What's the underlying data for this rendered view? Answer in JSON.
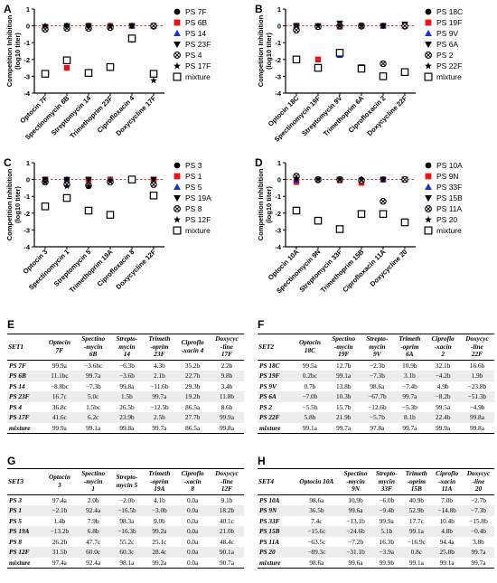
{
  "chart_data": [
    {
      "panel": "A",
      "type": "scatter",
      "ylabel_lines": [
        "Competition Inhibition",
        "(log10 titer)"
      ],
      "ylim": [
        -4,
        1
      ],
      "yticks": [
        1,
        0,
        -1,
        -2,
        -3,
        -4
      ],
      "categories": [
        "Optocin 7F",
        "Spectinomycin 6B",
        "Streptomycin 14",
        "Trimethoprim 23F",
        "Ciprofloxacin 4",
        "Doxycycline 17F"
      ],
      "series": [
        {
          "name": "PS 7F",
          "marker": "circle",
          "values": [
            -0.05,
            0.0,
            -0.1,
            0.0,
            0.0,
            -0.05
          ]
        },
        {
          "name": "PS 6B",
          "marker": "square-red",
          "values": [
            -0.15,
            -2.5,
            0.0,
            0.0,
            0.0,
            0.0
          ]
        },
        {
          "name": "PS 14",
          "marker": "triangle-up-blue",
          "values": [
            -0.05,
            0.0,
            -2.75,
            -0.05,
            0.0,
            0.0
          ]
        },
        {
          "name": "PS 23F",
          "marker": "triangle-down",
          "values": [
            -0.05,
            0.0,
            0.0,
            -2.5,
            0.0,
            -0.05
          ]
        },
        {
          "name": "PS 4",
          "marker": "circle-x",
          "values": [
            -0.2,
            -0.15,
            -0.15,
            -0.1,
            -0.8,
            0.0
          ]
        },
        {
          "name": "PS 17F",
          "marker": "star",
          "values": [
            0.0,
            0.0,
            0.0,
            0.0,
            0.0,
            -3.25
          ]
        },
        {
          "name": "mixture",
          "marker": "square-open",
          "values": [
            -2.85,
            -2.05,
            -2.8,
            -2.45,
            -0.75,
            -2.85
          ]
        }
      ]
    },
    {
      "panel": "B",
      "type": "scatter",
      "ylabel_lines": [
        "Competition Inhibition",
        "(log10 titer)"
      ],
      "ylim": [
        -4,
        1
      ],
      "yticks": [
        1,
        0,
        -1,
        -2,
        -3,
        -4
      ],
      "categories": [
        "Optocin 18C",
        "Spectinomycin 19F",
        "Streptomycin 9V",
        "Trimethoprim 6A",
        "Ciprofloxacin 2",
        "Doxycycline 22F"
      ],
      "series": [
        {
          "name": "PS 18C",
          "marker": "circle",
          "values": [
            0.0,
            -0.05,
            0.0,
            -0.05,
            0.0,
            -0.05
          ]
        },
        {
          "name": "PS 19F",
          "marker": "square-red",
          "values": [
            0.0,
            -2.0,
            -0.05,
            0.0,
            0.0,
            0.0
          ]
        },
        {
          "name": "PS 9V",
          "marker": "triangle-up-blue",
          "values": [
            0.0,
            -0.05,
            -1.75,
            0.0,
            0.0,
            0.0
          ]
        },
        {
          "name": "PS 6A",
          "marker": "triangle-down",
          "values": [
            0.0,
            0.0,
            0.15,
            -2.45,
            0.0,
            0.1
          ]
        },
        {
          "name": "PS 2",
          "marker": "circle-x",
          "values": [
            -0.25,
            -0.05,
            0.0,
            0.0,
            -2.25,
            0.0
          ]
        },
        {
          "name": "PS 22F",
          "marker": "star",
          "values": [
            0.0,
            0.0,
            0.0,
            0.0,
            0.0,
            -2.75
          ]
        },
        {
          "name": "mixture",
          "marker": "square-open",
          "values": [
            -2.0,
            -2.5,
            -1.6,
            -2.55,
            -3.0,
            -2.75
          ]
        }
      ]
    },
    {
      "panel": "C",
      "type": "scatter",
      "ylabel_lines": [
        "Competition Inhibition",
        "(log10 titer)"
      ],
      "ylim": [
        -4,
        1
      ],
      "yticks": [
        1,
        0,
        -1,
        -2,
        -3,
        -4
      ],
      "categories": [
        "Optocin 3",
        "Spectinomycin 1",
        "Streptomycin 5",
        "Trimethoprim 19A",
        "Ciprofloxacin 8",
        "Doxycycline 12F"
      ],
      "series": [
        {
          "name": "PS 3",
          "marker": "circle",
          "values": [
            -0.05,
            0.0,
            -0.4,
            0.0,
            0.0,
            -0.05
          ]
        },
        {
          "name": "PS 1",
          "marker": "square-red",
          "values": [
            0.0,
            -1.05,
            0.0,
            0.0,
            0.0,
            0.0
          ]
        },
        {
          "name": "PS 5",
          "marker": "triangle-up-blue",
          "values": [
            0.0,
            0.0,
            -1.85,
            0.0,
            0.0,
            -0.2
          ]
        },
        {
          "name": "PS 19A",
          "marker": "triangle-down",
          "values": [
            0.0,
            0.0,
            0.0,
            -2.1,
            0.0,
            0.0
          ]
        },
        {
          "name": "PS 8",
          "marker": "circle-x",
          "values": [
            -0.15,
            -0.3,
            -0.35,
            -0.15,
            0.0,
            -0.3
          ]
        },
        {
          "name": "PS 12F",
          "marker": "star",
          "values": [
            -0.15,
            -0.4,
            -0.4,
            -0.1,
            0.0,
            -1.0
          ]
        },
        {
          "name": "mixture",
          "marker": "square-open",
          "values": [
            -1.6,
            -1.1,
            -1.85,
            -2.1,
            0.0,
            -0.95
          ]
        }
      ]
    },
    {
      "panel": "D",
      "type": "scatter",
      "ylabel_lines": [
        "Competition Inhibition",
        "(log10 titer)"
      ],
      "ylim": [
        -4,
        1
      ],
      "yticks": [
        1,
        0,
        -1,
        -2,
        -3,
        -4
      ],
      "categories": [
        "Optocin 10A",
        "Spectinomycin 9N",
        "Streptomycin 33F",
        "Trimethoprim 15B",
        "Ciprofloxacin 11A",
        "Doxycycline 20"
      ],
      "series": [
        {
          "name": "PS 10A",
          "marker": "circle",
          "values": [
            -0.05,
            -0.05,
            0.0,
            0.0,
            0.0,
            0.0
          ]
        },
        {
          "name": "PS 9N",
          "marker": "square-red",
          "values": [
            -0.15,
            -2.45,
            -0.05,
            -0.2,
            0.0,
            0.0
          ]
        },
        {
          "name": "PS 33F",
          "marker": "triangle-up-blue",
          "values": [
            -0.05,
            0.0,
            -2.95,
            0.0,
            0.0,
            0.0
          ]
        },
        {
          "name": "PS 15B",
          "marker": "triangle-down",
          "values": [
            0.05,
            0.0,
            0.0,
            -2.0,
            0.0,
            0.0
          ]
        },
        {
          "name": "PS 11A",
          "marker": "circle-x",
          "values": [
            0.2,
            0.0,
            0.0,
            -0.05,
            -1.3,
            0.0
          ]
        },
        {
          "name": "PS 20",
          "marker": "star",
          "values": [
            0.05,
            0.0,
            0.0,
            0.0,
            0.0,
            -2.5
          ]
        },
        {
          "name": "mixture",
          "marker": "square-open",
          "values": [
            -1.85,
            -2.45,
            -2.95,
            -2.05,
            -2.05,
            -2.55
          ]
        }
      ]
    }
  ],
  "tables": [
    {
      "letter": "E",
      "columns": [
        [
          "SET1"
        ],
        [
          "Optocin",
          "7F"
        ],
        [
          "Spectino",
          "-mycin",
          "6B"
        ],
        [
          "Strepto-",
          "mycin",
          "14"
        ],
        [
          "Trimeth",
          "-oprim",
          "23F"
        ],
        [
          "Ciproflo",
          "-xacin 4"
        ],
        [
          "Doxycyc",
          "-line",
          "17F"
        ]
      ],
      "rows": [
        [
          "PS 7F",
          "99.9a",
          "−3.6bc",
          "−6.3b",
          "4.3b",
          "35.2b",
          "2.2b"
        ],
        [
          "PS 6B",
          "11.1bc",
          "99.7a",
          "−3.6b",
          "2.1b",
          "22.7b",
          "9.8b"
        ],
        [
          "PS 14",
          "−8.8bc",
          "−7.3b",
          "99.8a",
          "−11.6b",
          "29.3b",
          "3.4b"
        ],
        [
          "PS 23F",
          "16.7c",
          "5.0c",
          "1.5b",
          "99.7a",
          "19.2b",
          "11.8b"
        ],
        [
          "PS 4",
          "36.8c",
          "1.5bc",
          "26.5b",
          "−12.5b",
          "86.5a",
          "8.6b"
        ],
        [
          "PS 17F",
          "41.6c",
          "6.2c",
          "23.9b",
          "2.5b",
          "27.7b",
          "99.9a"
        ],
        [
          "mixture",
          "99.9a",
          "99.1a",
          "99.8a",
          "99.7a",
          "86.5a",
          "99.8a"
        ]
      ]
    },
    {
      "letter": "F",
      "columns": [
        [
          "SET2"
        ],
        [
          "Optocin",
          "18C"
        ],
        [
          "Spectino",
          "-mycin",
          "19F"
        ],
        [
          "Strepto-",
          "mycin",
          "9V"
        ],
        [
          "Trimeth",
          "-oprim",
          "6A"
        ],
        [
          "Ciproflo",
          "-xacin",
          "2"
        ],
        [
          "Doxycyc",
          "-line",
          "22F"
        ]
      ],
      "rows": [
        [
          "PS 18C",
          "99.5a",
          "12.7b",
          "−2.3b",
          "10.9b",
          "32.1b",
          "16.6b"
        ],
        [
          "PS 19F",
          "0.2bc",
          "99.1a",
          "−7.3b",
          "3.1b",
          "−4.2b",
          "1.9b"
        ],
        [
          "PS 9V",
          "0.7b",
          "13.8b",
          "98.6a",
          "−7.4b",
          "4.9b",
          "−23.8b"
        ],
        [
          "PS 6A",
          "−7.0b",
          "10.3b",
          "−67.7b",
          "99.7a",
          "−8.2b",
          "−51.3b"
        ],
        [
          "PS 2",
          "−5.5b",
          "15.7b",
          "−12.6b",
          "−5.3b",
          "99.5a",
          "−4.9b"
        ],
        [
          "PS 22F",
          "5.8b",
          "21.9b",
          "−5.7b",
          "8.1b",
          "22.4b",
          "99.8a"
        ],
        [
          "mixture",
          "99.1a",
          "99.7a",
          "97.8a",
          "99.7a",
          "99.9a",
          "99.8a"
        ]
      ]
    },
    {
      "letter": "G",
      "columns": [
        [
          "SET3"
        ],
        [
          "Optocin",
          "3"
        ],
        [
          "Spectino",
          "-mycin",
          "1"
        ],
        [
          "Strepto-",
          "mycin 5"
        ],
        [
          "Trimeth",
          "-oprim",
          "19A"
        ],
        [
          "Ciproflo",
          "-xacin",
          "8"
        ],
        [
          "Doxycyc",
          "-line",
          "12F"
        ]
      ],
      "rows": [
        [
          "PS 3",
          "97.4a",
          "2.0b",
          "−2.0b",
          "4.1b",
          "0.0a",
          "9.1b"
        ],
        [
          "PS 1",
          "−2.1b",
          "92.4a",
          "−16.5b",
          "−3.0b",
          "0.0a",
          "18.2b"
        ],
        [
          "PS 5",
          "1.4b",
          "7.9b",
          "98.3a",
          "9.0b",
          "0.0a",
          "40.1c"
        ],
        [
          "PS 19A",
          "−13.2b",
          "6.8b",
          "−16.3b",
          "99.2a",
          "0.0a",
          "21.0b"
        ],
        [
          "PS 8",
          "26.2b",
          "47.7c",
          "55.2c",
          "25.1c",
          "0.0a",
          "48.4c"
        ],
        [
          "PS 12F",
          "31.5b",
          "60.0c",
          "60.3c",
          "28.4c",
          "0.0a",
          "90.1a"
        ],
        [
          "mixture",
          "97.4a",
          "92.4a",
          "98.1a",
          "99.2a",
          "0.0a",
          "90.7a"
        ]
      ]
    },
    {
      "letter": "H",
      "columns": [
        [
          "SET4"
        ],
        [
          "Optocin 10A"
        ],
        [
          "Spectino",
          "-mycin",
          "9N"
        ],
        [
          "Strepto-",
          "mycin",
          "33F"
        ],
        [
          "Trimeth",
          "-oprim",
          "15B"
        ],
        [
          "Ciproflo",
          "-xacin",
          "11A"
        ],
        [
          "Doxycyc",
          "-line",
          "20"
        ]
      ],
      "rows": [
        [
          "PS 10A",
          "98.6a",
          "10.9b",
          "−6.0b",
          "40.9b",
          "7.0b",
          "−2.7b"
        ],
        [
          "PS 9N",
          "36.5b",
          "99.6a",
          "−9.4b",
          "52.9b",
          "−14.8b",
          "−7.3b"
        ],
        [
          "PS 33F",
          "7.4c",
          "−13.1b",
          "99.9a",
          "17.7c",
          "10.4b",
          "−15.8b"
        ],
        [
          "PS 15B",
          "−15.6c",
          "−24.6b",
          "5.1b",
          "99.1a",
          "4.8b",
          "−0.4b"
        ],
        [
          "PS 11A",
          "−63.5c",
          "−7.2b",
          "16.3b",
          "−16.9c",
          "94.4a",
          "3.8b"
        ],
        [
          "PS 20",
          "−89.3c",
          "−31.1b",
          "−3.9a",
          "0.8c",
          "25.8b",
          "99.7a"
        ],
        [
          "mixture",
          "98.6a",
          "99.6a",
          "99.9b",
          "99.1a",
          "99.1a",
          "99.7a"
        ]
      ]
    }
  ]
}
